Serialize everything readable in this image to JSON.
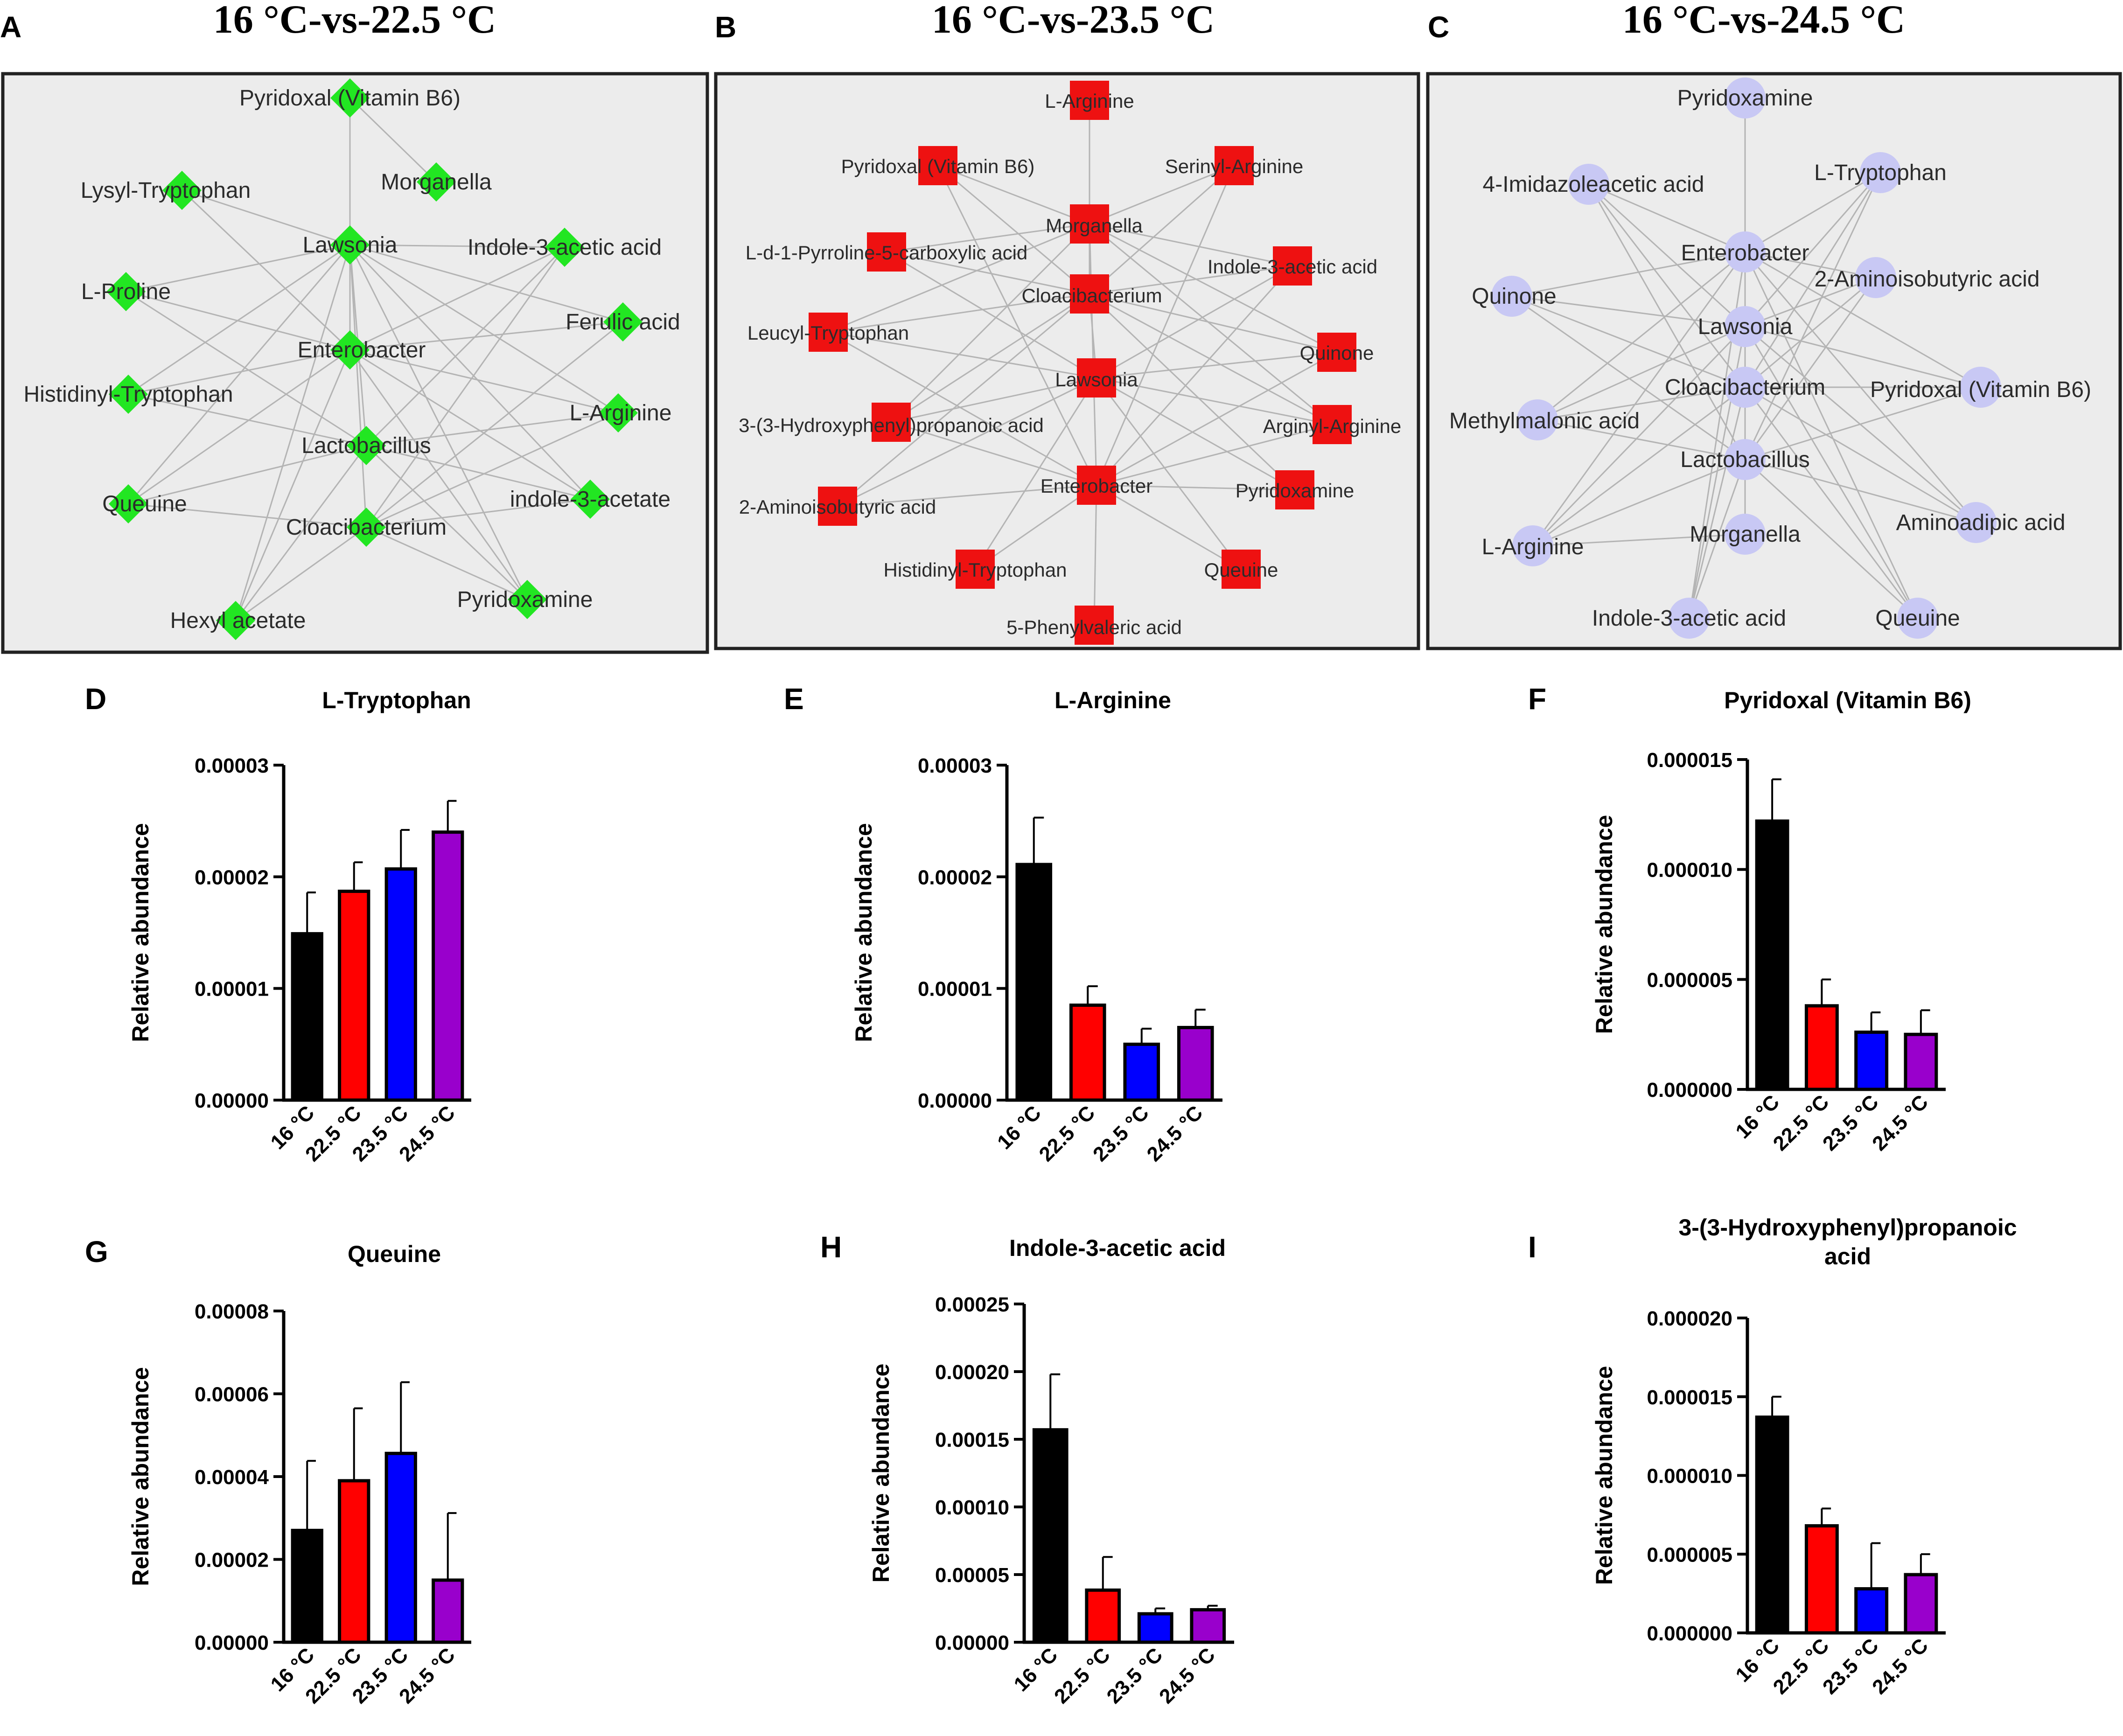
{
  "networks": [
    {
      "letter": "A",
      "title": "16 °C-vs-22.5 °C",
      "shape": "diamond",
      "color": "#22e622",
      "background": "#ececec",
      "hubs": [
        "Lawsonia",
        "Enterobacter",
        "Lactobacillus",
        "Cloacibacterium"
      ],
      "nodes": [
        "Pyridoxal (Vitamin B6)",
        "Lysyl-Tryptophan",
        "Morganella",
        "Lawsonia",
        "Indole-3-acetic acid",
        "L-Proline",
        "Ferulic acid",
        "Enterobacter",
        "Histidinyl-Tryptophan",
        "L-Arginine",
        "Lactobacillus",
        "Queuine",
        "indole-3-acetate",
        "Cloacibacterium",
        "Pyridoxamine",
        "Hexyl acetate"
      ]
    },
    {
      "letter": "B",
      "title": "16 °C-vs-23.5 °C",
      "shape": "square",
      "color": "#ee1111",
      "background": "#ececec",
      "hubs": [
        "Morganella",
        "Cloacibacterium",
        "Lawsonia",
        "Enterobacter"
      ],
      "nodes": [
        "L-Arginine",
        "Pyridoxal (Vitamin B6)",
        "Serinyl-Arginine",
        "Morganella",
        "L-d-1-Pyrroline-5-carboxylic acid",
        "Indole-3-acetic acid",
        "Cloacibacterium",
        "Leucyl-Tryptophan",
        "Quinone",
        "Lawsonia",
        "3-(3-Hydroxyphenyl)propanoic acid",
        "Arginyl-Arginine",
        "Enterobacter",
        "2-Aminoisobutyric acid",
        "Pyridoxamine",
        "Histidinyl-Tryptophan",
        "Queuine",
        "5-Phenylvaleric acid"
      ]
    },
    {
      "letter": "C",
      "title": "16 °C-vs-24.5 °C",
      "shape": "circle",
      "color": "#c8c8f4",
      "background": "#ececec",
      "hubs": [
        "Enterobacter",
        "Lawsonia",
        "Cloacibacterium",
        "Lactobacillus"
      ],
      "nodes": [
        "Pyridoxamine",
        "4-Imidazoleacetic acid",
        "L-Tryptophan",
        "Enterobacter",
        "2-Aminoisobutyric acid",
        "Quinone",
        "Lawsonia",
        "Cloacibacterium",
        "Pyridoxal (Vitamin B6)",
        "Methylmalonic acid",
        "Lactobacillus",
        "Aminoadipic acid",
        "L-Arginine",
        "Morganella",
        "Indole-3-acetic acid",
        "Queuine"
      ]
    }
  ],
  "chart_data": [
    {
      "letter": "D",
      "type": "bar",
      "title": "L-Tryptophan",
      "ylabel": "Relative abundance",
      "categories": [
        "16 °C",
        "22.5 °C",
        "23.5 °C",
        "24.5 °C"
      ],
      "values": [
        1.49e-05,
        1.87e-05,
        2.07e-05,
        2.4e-05
      ],
      "errors": [
        3.7e-06,
        2.6e-06,
        3.5e-06,
        2.8e-06
      ],
      "ylim": [
        0,
        3e-05
      ],
      "ticks": [
        "0.00000",
        "0.00001",
        "0.00002",
        "0.00003"
      ],
      "colors": [
        "#000000",
        "#ff0000",
        "#0000ff",
        "#9900cc"
      ]
    },
    {
      "letter": "E",
      "type": "bar",
      "title": "L-Arginine",
      "ylabel": "Relative abundance",
      "categories": [
        "16 °C",
        "22.5 °C",
        "23.5 °C",
        "24.5 °C"
      ],
      "values": [
        2.11e-05,
        8.5e-06,
        5e-06,
        6.5e-06
      ],
      "errors": [
        4.2e-06,
        1.7e-06,
        1.4e-06,
        1.6e-06
      ],
      "ylim": [
        0,
        3e-05
      ],
      "ticks": [
        "0.00000",
        "0.00001",
        "0.00002",
        "0.00003"
      ],
      "colors": [
        "#000000",
        "#ff0000",
        "#0000ff",
        "#9900cc"
      ]
    },
    {
      "letter": "F",
      "type": "bar",
      "title": "Pyridoxal (Vitamin B6)",
      "ylabel": "Relative abundance",
      "categories": [
        "16 °C",
        "22.5 °C",
        "23.5 °C",
        "24.5 °C"
      ],
      "values": [
        1.22e-05,
        3.8e-06,
        2.6e-06,
        2.5e-06
      ],
      "errors": [
        1.9e-06,
        1.2e-06,
        9e-07,
        1.1e-06
      ],
      "ylim": [
        0,
        1.5e-05
      ],
      "ticks": [
        "0.000000",
        "0.000005",
        "0.000010",
        "0.000015"
      ],
      "colors": [
        "#000000",
        "#ff0000",
        "#0000ff",
        "#9900cc"
      ]
    },
    {
      "letter": "G",
      "type": "bar",
      "title": "Queuine",
      "ylabel": "Relative abundance",
      "categories": [
        "16 °C",
        "22.5 °C",
        "23.5 °C",
        "24.5 °C"
      ],
      "values": [
        2.7e-05,
        3.9e-05,
        4.56e-05,
        1.5e-05
      ],
      "errors": [
        1.68e-05,
        1.75e-05,
        1.72e-05,
        1.62e-05
      ],
      "ylim": [
        0,
        8e-05
      ],
      "ticks": [
        "0.00000",
        "0.00002",
        "0.00004",
        "0.00006",
        "0.00008"
      ],
      "colors": [
        "#000000",
        "#ff0000",
        "#0000ff",
        "#9900cc"
      ]
    },
    {
      "letter": "H",
      "type": "bar",
      "title": "Indole-3-acetic acid",
      "ylabel": "Relative abundance",
      "categories": [
        "16 °C",
        "22.5 °C",
        "23.5 °C",
        "24.5 °C"
      ],
      "values": [
        0.000157,
        3.85e-05,
        2.1e-05,
        2.4e-05
      ],
      "errors": [
        4.1e-05,
        2.45e-05,
        4e-06,
        3e-06
      ],
      "ylim": [
        0,
        0.00025
      ],
      "ticks": [
        "0.00000",
        "0.00005",
        "0.00010",
        "0.00015",
        "0.00020",
        "0.00025"
      ],
      "colors": [
        "#000000",
        "#ff0000",
        "#0000ff",
        "#9900cc"
      ]
    },
    {
      "letter": "I",
      "type": "bar",
      "title": "3-(3-Hydroxyphenyl)propanoic acid",
      "title_lines": [
        "3-(3-Hydroxyphenyl)propanoic",
        "acid"
      ],
      "ylabel": "Relative abundance",
      "categories": [
        "16 °C",
        "22.5 °C",
        "23.5 °C",
        "24.5 °C"
      ],
      "values": [
        1.37e-05,
        6.8e-06,
        2.8e-06,
        3.7e-06
      ],
      "errors": [
        1.3e-06,
        1.1e-06,
        2.9e-06,
        1.3e-06
      ],
      "ylim": [
        0,
        2e-05
      ],
      "ticks": [
        "0.000000",
        "0.000005",
        "0.000010",
        "0.000015",
        "0.000020"
      ],
      "colors": [
        "#000000",
        "#ff0000",
        "#0000ff",
        "#9900cc"
      ]
    }
  ]
}
